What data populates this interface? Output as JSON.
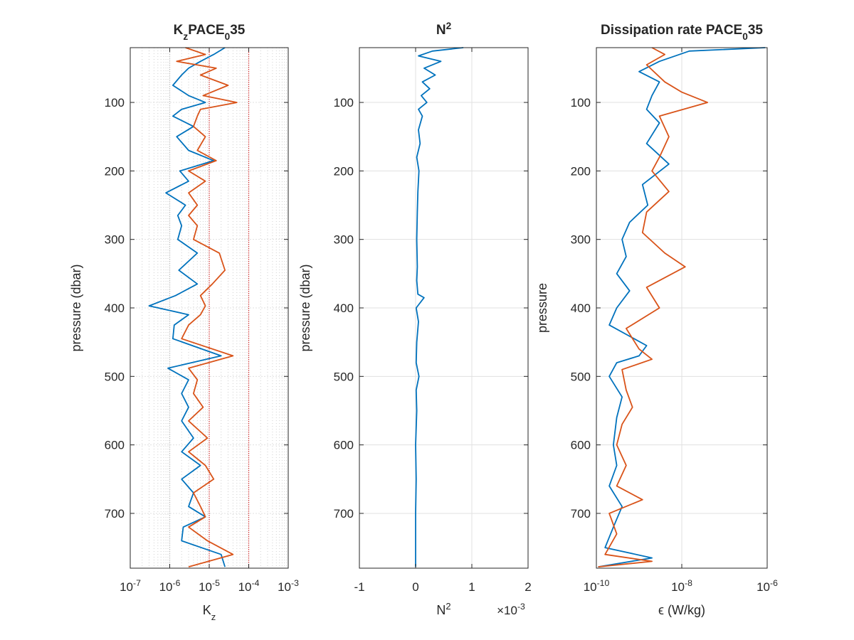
{
  "chart_data": [
    {
      "type": "line",
      "title": "K_z PACE_0 35",
      "xlabel": "K_z",
      "ylabel": "pressure (dbar)",
      "xscale": "log",
      "xlim": [
        1e-07,
        0.001
      ],
      "ylim": [
        780,
        20
      ],
      "yaxis_direction": "reversed",
      "grid": "on (major and minor, dotted)",
      "xticklabels": [
        "10^-7",
        "10^-6",
        "10^-5",
        "10^-4",
        "10^-3"
      ],
      "yticks": [
        100,
        200,
        300,
        400,
        500,
        600,
        700
      ],
      "reference_lines": [
        {
          "axis": "x",
          "value": 1e-06,
          "color": "#bfbfbf"
        },
        {
          "axis": "x",
          "value": 1e-05,
          "color": "#cc3333"
        },
        {
          "axis": "x",
          "value": 0.0001,
          "color": "#cc3333"
        }
      ],
      "series": [
        {
          "color": "#0072BD",
          "y": [
            20,
            30,
            40,
            50,
            60,
            75,
            90,
            100,
            110,
            120,
            135,
            150,
            170,
            185,
            200,
            215,
            232,
            250,
            265,
            280,
            300,
            320,
            345,
            365,
            382,
            397,
            410,
            425,
            445,
            470,
            488,
            505,
            525,
            545,
            565,
            590,
            610,
            630,
            650,
            670,
            690,
            705,
            720,
            740,
            760,
            778
          ],
          "x": [
            2.5e-05,
            1.3e-05,
            6e-06,
            3e-06,
            2e-06,
            1.2e-06,
            3e-06,
            8e-06,
            2e-06,
            1.2e-06,
            4e-06,
            1.5e-06,
            3e-06,
            1.3e-05,
            1.8e-06,
            3e-06,
            8e-07,
            2.5e-06,
            1.6e-06,
            2e-06,
            1.6e-06,
            5e-06,
            1.7e-06,
            5e-06,
            1.4e-06,
            3e-07,
            3e-06,
            1.3e-06,
            1.2e-06,
            2e-05,
            9e-07,
            3e-06,
            2e-06,
            3e-06,
            2e-06,
            4e-06,
            2e-06,
            6e-06,
            2e-06,
            4e-06,
            3e-06,
            8e-06,
            2.2e-06,
            2e-06,
            2e-05,
            2.5e-05
          ]
        },
        {
          "color": "#D95319",
          "y": [
            20,
            30,
            40,
            50,
            60,
            75,
            90,
            100,
            110,
            120,
            135,
            150,
            170,
            185,
            200,
            215,
            232,
            250,
            265,
            280,
            300,
            320,
            345,
            365,
            382,
            397,
            410,
            425,
            445,
            470,
            488,
            505,
            525,
            545,
            565,
            590,
            610,
            630,
            650,
            670,
            690,
            705,
            720,
            740,
            760,
            778
          ],
          "x": [
            2.5e-06,
            8e-06,
            1.5e-06,
            1.5e-05,
            6e-06,
            3e-05,
            7e-06,
            5e-05,
            6e-06,
            5e-06,
            4e-06,
            8e-06,
            5e-06,
            1.5e-05,
            3e-06,
            8e-06,
            3e-06,
            5e-06,
            3e-06,
            5e-06,
            4e-06,
            1.8e-05,
            2.5e-05,
            1.2e-05,
            6e-06,
            8e-06,
            6e-06,
            3e-06,
            2e-06,
            4e-05,
            3e-06,
            5e-06,
            4e-06,
            7e-06,
            3e-06,
            9e-06,
            3e-06,
            8e-06,
            1.3e-05,
            4e-06,
            6e-06,
            8e-06,
            3e-06,
            9e-06,
            4e-05,
            3e-06
          ]
        }
      ]
    },
    {
      "type": "line",
      "title": "N^2",
      "xlabel": "N^2",
      "x_exponent_label": "×10^-3",
      "ylabel": "pressure (dbar)",
      "xlim": [
        -1,
        2
      ],
      "ylim": [
        780,
        20
      ],
      "yaxis_direction": "reversed",
      "grid": "on",
      "xticks": [
        -1,
        0,
        1,
        2
      ],
      "yticks": [
        100,
        200,
        300,
        400,
        500,
        600,
        700
      ],
      "series": [
        {
          "color": "#0072BD",
          "y": [
            20,
            25,
            32,
            40,
            50,
            60,
            70,
            80,
            90,
            100,
            110,
            120,
            140,
            160,
            180,
            200,
            230,
            260,
            300,
            340,
            360,
            380,
            385,
            400,
            420,
            450,
            480,
            500,
            520,
            550,
            600,
            650,
            700,
            750,
            778
          ],
          "x": [
            0.85,
            0.3,
            0.05,
            0.45,
            0.15,
            0.35,
            0.12,
            0.25,
            0.1,
            0.2,
            0.05,
            0.12,
            0.05,
            0.08,
            0.02,
            0.06,
            0.04,
            0.03,
            0.02,
            0.03,
            0.02,
            0.04,
            0.15,
            0.01,
            0.05,
            0.02,
            0.01,
            0.06,
            0.01,
            0.02,
            0.0,
            0.01,
            0.0,
            0.0,
            0.0
          ]
        }
      ]
    },
    {
      "type": "line",
      "title": "Dissipation rate PACE_0 35",
      "xlabel": "ϵ (W/kg)",
      "ylabel": "pressure",
      "xscale": "log",
      "xlim": [
        1e-10,
        1e-06
      ],
      "ylim": [
        780,
        20
      ],
      "yaxis_direction": "reversed",
      "grid": "on",
      "xticklabels": [
        "10^-10",
        "10^-8",
        "10^-6"
      ],
      "yticks": [
        100,
        200,
        300,
        400,
        500,
        600,
        700
      ],
      "series": [
        {
          "color": "#0072BD",
          "y": [
            20,
            25,
            40,
            55,
            70,
            90,
            110,
            130,
            160,
            190,
            220,
            250,
            275,
            300,
            325,
            350,
            375,
            400,
            425,
            455,
            470,
            480,
            500,
            530,
            560,
            600,
            630,
            660,
            690,
            720,
            750,
            765,
            778
          ],
          "x": [
            9e-07,
            1.5e-08,
            3e-09,
            1e-09,
            3e-09,
            2e-09,
            1.5e-09,
            3e-09,
            1.5e-09,
            5e-09,
            1.2e-09,
            1.6e-09,
            6e-10,
            4e-10,
            5e-10,
            3e-10,
            6e-10,
            3e-10,
            2e-10,
            1.5e-09,
            1e-09,
            3e-10,
            2e-10,
            4e-10,
            3e-10,
            2.5e-10,
            3e-10,
            2e-10,
            4e-10,
            2.5e-10,
            1.6e-10,
            2e-09,
            1.1e-10
          ]
        },
        {
          "color": "#D95319",
          "y": [
            20,
            30,
            45,
            70,
            85,
            100,
            120,
            150,
            180,
            200,
            230,
            260,
            290,
            320,
            340,
            370,
            400,
            430,
            460,
            475,
            490,
            520,
            545,
            570,
            600,
            630,
            660,
            680,
            700,
            730,
            760,
            770,
            778
          ],
          "x": [
            2e-09,
            4e-09,
            1.5e-09,
            4e-09,
            1e-08,
            4e-08,
            3e-09,
            5e-09,
            3e-09,
            2e-09,
            5e-09,
            1.5e-09,
            1.2e-09,
            4e-09,
            1.2e-08,
            1.5e-09,
            3e-09,
            5e-10,
            1e-09,
            2e-09,
            4e-10,
            5e-10,
            7e-10,
            4e-10,
            3e-10,
            5e-10,
            3e-10,
            1.2e-09,
            2e-10,
            3e-10,
            1.6e-10,
            2e-09,
            1.1e-10
          ]
        }
      ]
    }
  ]
}
